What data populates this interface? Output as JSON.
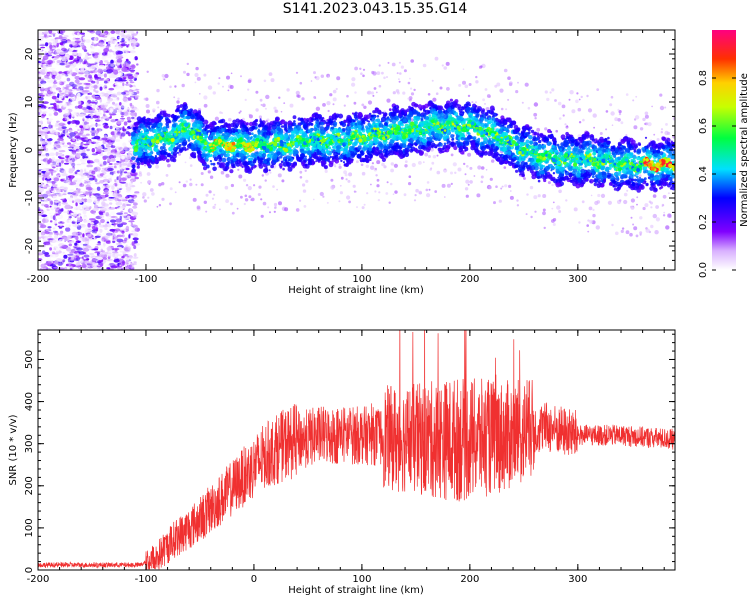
{
  "title": "S141.2023.043.15.35.G14",
  "chart_data": [
    {
      "type": "heatmap",
      "xlabel": "Height of straight line (km)",
      "ylabel": "Frequency (Hz)",
      "xlim": [
        -200,
        390
      ],
      "ylim": [
        -25,
        25
      ],
      "x_ticks": [
        -200,
        -100,
        0,
        100,
        200,
        300
      ],
      "y_ticks": [
        -20,
        -10,
        0,
        10,
        20
      ],
      "colorbar": {
        "label": "Normalized spectral amplitude",
        "range": [
          0,
          1
        ],
        "ticks": [
          0.0,
          0.2,
          0.4,
          0.6,
          0.8
        ]
      },
      "ridge": [
        {
          "x": -110,
          "y": 1
        },
        {
          "x": -95,
          "y": 2
        },
        {
          "x": -75,
          "y": 3
        },
        {
          "x": -60,
          "y": 5
        },
        {
          "x": -45,
          "y": 1
        },
        {
          "x": -25,
          "y": 1
        },
        {
          "x": 0,
          "y": 1
        },
        {
          "x": 25,
          "y": 1
        },
        {
          "x": 50,
          "y": 2
        },
        {
          "x": 80,
          "y": 2
        },
        {
          "x": 110,
          "y": 3
        },
        {
          "x": 140,
          "y": 4
        },
        {
          "x": 170,
          "y": 5
        },
        {
          "x": 200,
          "y": 5
        },
        {
          "x": 225,
          "y": 3
        },
        {
          "x": 240,
          "y": 1
        },
        {
          "x": 260,
          "y": -1
        },
        {
          "x": 285,
          "y": -2
        },
        {
          "x": 310,
          "y": -2
        },
        {
          "x": 340,
          "y": -3
        },
        {
          "x": 370,
          "y": -3
        },
        {
          "x": 390,
          "y": -3
        }
      ]
    },
    {
      "type": "line",
      "xlabel": "Height of straight line (km)",
      "ylabel": "SNR (10 * v/v)",
      "xlim": [
        -200,
        390
      ],
      "ylim": [
        0,
        570
      ],
      "x_ticks": [
        -200,
        -100,
        0,
        100,
        200,
        300
      ],
      "y_ticks": [
        0,
        100,
        200,
        300,
        400,
        500
      ],
      "color": "#f03030",
      "envelope": [
        {
          "x": -200,
          "y": 12
        },
        {
          "x": -150,
          "y": 12
        },
        {
          "x": -105,
          "y": 12
        },
        {
          "x": -90,
          "y": 30
        },
        {
          "x": -75,
          "y": 70
        },
        {
          "x": -50,
          "y": 120
        },
        {
          "x": -30,
          "y": 170
        },
        {
          "x": -10,
          "y": 220
        },
        {
          "x": 10,
          "y": 270
        },
        {
          "x": 30,
          "y": 300
        },
        {
          "x": 60,
          "y": 320
        },
        {
          "x": 100,
          "y": 320
        },
        {
          "x": 150,
          "y": 310
        },
        {
          "x": 200,
          "y": 310
        },
        {
          "x": 240,
          "y": 320
        },
        {
          "x": 270,
          "y": 340
        },
        {
          "x": 300,
          "y": 320
        },
        {
          "x": 340,
          "y": 320
        },
        {
          "x": 390,
          "y": 310
        }
      ]
    }
  ],
  "colors": {
    "snr_line": "#f03030",
    "colormap": [
      "#ffffff",
      "#9b30ff",
      "#0000ff",
      "#00ffff",
      "#00ff00",
      "#ffff00",
      "#ff0000",
      "#ff0080"
    ]
  }
}
